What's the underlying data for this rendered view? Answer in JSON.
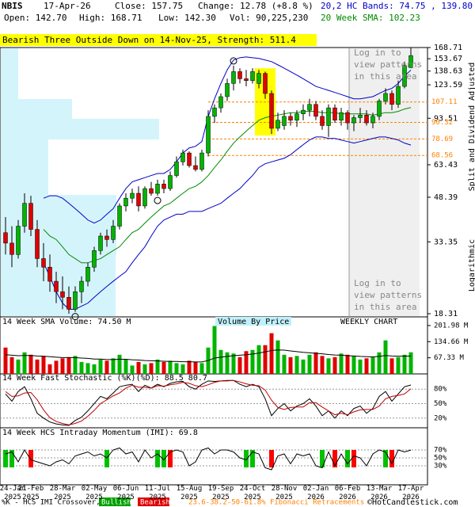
{
  "header": {
    "symbol": "NBIS",
    "date": "17-Apr-26",
    "close": "Close: 157.75",
    "change": "Change: 12.78 (+8.8 %)",
    "bands": "20,2 HC Bands: 74.75 , 139.80",
    "open": "Open: 142.70",
    "high": "High: 168.71",
    "low": "Low: 142.30",
    "volume": "Vol: 90,225,230",
    "sma": "20 Week SMA: 102.23"
  },
  "pattern_banner": "Bearish Three Outside Down on 14-Nov-25, Strength: 511.4",
  "notice": [
    "Log in to",
    "view patterns",
    "in this area"
  ],
  "side_labels": {
    "adjusted": "Split and Dividend Adjusted",
    "scale": "Logarithmic"
  },
  "footer": {
    "crossover": "%K - HCS IMI Crossover,",
    "bullish": "Bullish",
    "bearish": "Bearish",
    "fibonacci": "23.6-38.2-50-61.8% Fibonacci Retracements",
    "copyright": "©HotCandlestick.com"
  },
  "chart_data": [
    {
      "type": "candlestick",
      "categories": [
        "24-Jan 2025",
        null,
        null,
        null,
        "21-Feb 2025",
        null,
        null,
        null,
        null,
        "28-Mar 2025",
        null,
        null,
        null,
        null,
        "02-May 2025",
        null,
        null,
        null,
        null,
        "06-Jun 2025",
        null,
        null,
        null,
        null,
        "11-Jul 2025",
        null,
        null,
        null,
        null,
        "15-Aug 2025",
        null,
        null,
        null,
        null,
        "19-Sep 2025",
        null,
        null,
        null,
        null,
        "24-Oct 2025",
        null,
        null,
        null,
        null,
        "28-Nov 2025",
        null,
        null,
        null,
        null,
        "02-Jan 2026",
        null,
        null,
        null,
        null,
        "06-Feb 2026",
        null,
        null,
        null,
        null,
        "13-Mar 2026",
        null,
        null,
        null,
        null,
        "17-Apr 2026"
      ],
      "open": [
        36,
        33,
        30,
        38,
        46,
        37,
        29,
        27,
        24,
        22,
        21,
        19,
        22,
        24,
        27,
        31,
        35,
        34,
        38,
        45,
        48,
        50,
        45,
        52,
        50,
        54,
        52,
        58,
        65,
        70,
        63,
        61,
        70,
        95,
        102,
        112,
        125,
        138,
        130,
        128,
        125,
        136,
        115,
        86,
        88,
        95,
        92,
        97,
        100,
        105,
        95,
        88,
        102,
        92,
        98,
        90,
        94,
        96,
        90,
        95,
        108,
        115,
        105,
        122,
        142.7
      ],
      "high": [
        41,
        38,
        40,
        50,
        49,
        40,
        33,
        30,
        26,
        25,
        23,
        23,
        25,
        28,
        32,
        36,
        37,
        40,
        46,
        50,
        52,
        53,
        53,
        55,
        56,
        56,
        60,
        68,
        72,
        71,
        68,
        72,
        100,
        105,
        115,
        130,
        145,
        142,
        140,
        142,
        140,
        138,
        118,
        98,
        100,
        98,
        100,
        105,
        110,
        108,
        100,
        105,
        105,
        102,
        100,
        96,
        102,
        100,
        98,
        110,
        120,
        118,
        128,
        150,
        168.71
      ],
      "low": [
        30,
        27,
        29,
        36,
        35,
        27,
        24,
        22,
        20,
        19,
        18.31,
        18.6,
        20,
        23,
        26,
        30,
        32,
        33,
        37,
        43,
        46,
        43,
        44,
        49,
        49,
        50,
        51,
        57,
        63,
        62,
        60,
        60,
        68,
        90,
        98,
        108,
        118,
        125,
        122,
        125,
        120,
        110,
        82,
        84,
        85,
        88,
        87,
        92,
        95,
        92,
        85,
        80,
        90,
        88,
        85,
        84,
        90,
        88,
        86,
        92,
        105,
        100,
        102,
        120,
        142.3
      ],
      "close": [
        33,
        30,
        38,
        46,
        37,
        29,
        27,
        24,
        22,
        21,
        19,
        22,
        24,
        27,
        31,
        35,
        34,
        38,
        45,
        48,
        50,
        45,
        52,
        50,
        54,
        52,
        58,
        65,
        70,
        63,
        61,
        70,
        95,
        102,
        112,
        125,
        138,
        130,
        128,
        138,
        136,
        115,
        86,
        92,
        95,
        92,
        97,
        100,
        105,
        95,
        88,
        102,
        92,
        98,
        90,
        94,
        96,
        90,
        95,
        108,
        115,
        105,
        122,
        145,
        157.75
      ],
      "up_color": "#00b400",
      "down_color": "#e00000",
      "highlight_color": "#ffff00",
      "log_scale": true,
      "ylim": [
        18.31,
        168.71
      ],
      "yticks": [
        168.71,
        153.67,
        138.63,
        123.59,
        93.51,
        63.43,
        48.39,
        33.35,
        18.31
      ],
      "lines": [
        {
          "color": "#0000c8",
          "values": [
            null,
            null,
            null,
            null,
            null,
            null,
            48,
            49,
            49,
            48,
            46,
            44,
            42,
            40,
            39,
            40,
            42,
            44,
            48,
            52,
            55,
            56,
            57,
            58,
            59,
            59,
            61,
            65,
            70,
            73,
            74,
            77,
            95,
            110,
            125,
            140,
            152,
            155,
            156,
            155,
            154,
            152,
            150,
            146,
            142,
            138,
            134,
            130,
            126,
            122,
            120,
            118,
            116,
            114,
            112,
            110,
            110,
            111,
            112,
            115,
            118,
            120,
            125,
            133,
            139.8
          ]
        },
        {
          "color": "#0000c8",
          "values": [
            null,
            null,
            null,
            null,
            null,
            null,
            28,
            25,
            22,
            20,
            19,
            19,
            19.5,
            20,
            21,
            22,
            23,
            24,
            25,
            26,
            28,
            30,
            32,
            35,
            38,
            40,
            41,
            42,
            42,
            43,
            43,
            43,
            44,
            45,
            46,
            48,
            50,
            52,
            55,
            58,
            62,
            64,
            65,
            66,
            67,
            69,
            72,
            75,
            78,
            80,
            80,
            79,
            79,
            78,
            77,
            76,
            77,
            78,
            79,
            80,
            80,
            79,
            78,
            76,
            74.75
          ]
        },
        {
          "color": "#008c00",
          "values": [
            null,
            null,
            null,
            null,
            null,
            null,
            37,
            35,
            34,
            32,
            30,
            29,
            28,
            28,
            28.5,
            29,
            30,
            31,
            32,
            34,
            36,
            37,
            39,
            41,
            43,
            45,
            46,
            48,
            50,
            52,
            53,
            55,
            58,
            62,
            66,
            71,
            76,
            80,
            84,
            88,
            92,
            94,
            95,
            96,
            97,
            98,
            98,
            99,
            99,
            99,
            98,
            98,
            98,
            97,
            97,
            97,
            97,
            97,
            96,
            97,
            98,
            98,
            99,
            101,
            102.23
          ]
        }
      ],
      "fib_levels": {
        "color": "#ff8000",
        "values": [
          107.11,
          90.32,
          78.69,
          68.56
        ]
      }
    },
    {
      "type": "bar",
      "title": "14 Week SMA Volume: 74.50 M",
      "subtitle": "Volume By Price",
      "annotation": "WEEKLY CHART",
      "values": [
        110,
        70,
        60,
        90,
        80,
        60,
        75,
        40,
        55,
        65,
        70,
        75,
        50,
        45,
        40,
        60,
        55,
        65,
        80,
        60,
        35,
        50,
        40,
        45,
        60,
        50,
        55,
        45,
        40,
        55,
        50,
        45,
        110,
        200,
        100,
        90,
        85,
        70,
        95,
        100,
        120,
        120,
        170,
        140,
        80,
        70,
        75,
        60,
        80,
        90,
        75,
        65,
        70,
        85,
        80,
        75,
        60,
        65,
        70,
        90,
        140,
        65,
        70,
        80,
        90.22523
      ],
      "line": {
        "color": "#000000",
        "values": [
          80,
          78,
          76,
          77,
          77,
          75,
          74,
          72,
          70,
          68,
          68,
          68,
          66,
          65,
          62,
          62,
          60,
          60,
          61,
          61,
          59,
          58,
          56,
          55,
          54,
          53,
          52,
          52,
          51,
          51,
          50,
          50,
          56,
          66,
          70,
          73,
          76,
          78,
          80,
          83,
          87,
          92,
          98,
          100,
          99,
          96,
          93,
          90,
          88,
          86,
          84,
          81,
          79,
          78,
          76,
          75,
          73,
          72,
          71,
          73,
          77,
          75,
          74,
          74,
          74.5
        ]
      },
      "ylim": [
        0,
        205
      ],
      "yticks": [
        {
          "value": 201.98,
          "label": "201.98 M"
        },
        {
          "value": 134.66,
          "label": "134.66 M"
        },
        {
          "value": 67.33,
          "label": "67.33 M"
        }
      ]
    },
    {
      "type": "line",
      "title": "14 Week Fast Stochastic (%K)(%D): 88.5 80.7",
      "series": [
        {
          "color": "#000000",
          "values": [
            70,
            55,
            75,
            85,
            60,
            30,
            20,
            12,
            8,
            6,
            5,
            15,
            22,
            35,
            50,
            65,
            60,
            72,
            85,
            88,
            90,
            75,
            88,
            82,
            90,
            85,
            92,
            95,
            96,
            85,
            80,
            90,
            97,
            96,
            97,
            98,
            98,
            90,
            85,
            90,
            85,
            60,
            25,
            40,
            50,
            35,
            45,
            50,
            60,
            45,
            25,
            35,
            20,
            35,
            25,
            40,
            45,
            30,
            40,
            65,
            75,
            55,
            70,
            85,
            88.5
          ]
        },
        {
          "color": "#c00000",
          "values": [
            75,
            65,
            66,
            72,
            73,
            58,
            37,
            21,
            13,
            9,
            6,
            9,
            14,
            24,
            36,
            50,
            58,
            66,
            72,
            82,
            88,
            84,
            84,
            82,
            87,
            86,
            89,
            91,
            94,
            92,
            87,
            85,
            89,
            94,
            97,
            97,
            98,
            95,
            91,
            88,
            87,
            78,
            57,
            42,
            38,
            42,
            43,
            43,
            52,
            52,
            43,
            35,
            27,
            30,
            27,
            33,
            37,
            38,
            38,
            45,
            60,
            65,
            67,
            70,
            80.7
          ]
        }
      ],
      "ylim": [
        0,
        100
      ],
      "yticks": [
        {
          "value": 80,
          "label": "80%"
        },
        {
          "value": 50,
          "label": "50%"
        },
        {
          "value": 20,
          "label": "20%"
        }
      ]
    },
    {
      "type": "line",
      "title": "14 Week HCS Intraday Momentum (IMI): 69.8",
      "series": [
        {
          "color": "#000000",
          "values": [
            60,
            65,
            40,
            70,
            45,
            40,
            35,
            30,
            40,
            45,
            35,
            55,
            60,
            65,
            55,
            60,
            50,
            70,
            75,
            60,
            65,
            40,
            70,
            50,
            60,
            45,
            65,
            70,
            65,
            30,
            40,
            70,
            75,
            60,
            70,
            70,
            65,
            50,
            45,
            65,
            60,
            25,
            20,
            55,
            60,
            35,
            60,
            55,
            60,
            30,
            25,
            65,
            30,
            60,
            35,
            55,
            50,
            30,
            60,
            70,
            65,
            35,
            70,
            65,
            69.8
          ]
        }
      ],
      "crossovers": {
        "bullish_color": "#00c000",
        "bearish_color": "#ff0000",
        "values": [
          1,
          1,
          null,
          null,
          -1,
          null,
          null,
          null,
          null,
          null,
          null,
          null,
          null,
          null,
          null,
          null,
          1,
          null,
          null,
          null,
          null,
          null,
          null,
          null,
          1,
          1,
          -1,
          null,
          null,
          null,
          null,
          null,
          null,
          null,
          null,
          null,
          null,
          null,
          1,
          1,
          null,
          null,
          -1,
          null,
          null,
          null,
          null,
          null,
          null,
          null,
          1,
          null,
          -1,
          null,
          1,
          -1,
          null,
          null,
          null,
          null,
          1,
          -1,
          null,
          null,
          null
        ]
      },
      "ylim": [
        0,
        100
      ],
      "yticks": [
        {
          "value": 70,
          "label": "70%"
        },
        {
          "value": 50,
          "label": "50%"
        },
        {
          "value": 30,
          "label": "30%"
        }
      ]
    }
  ]
}
